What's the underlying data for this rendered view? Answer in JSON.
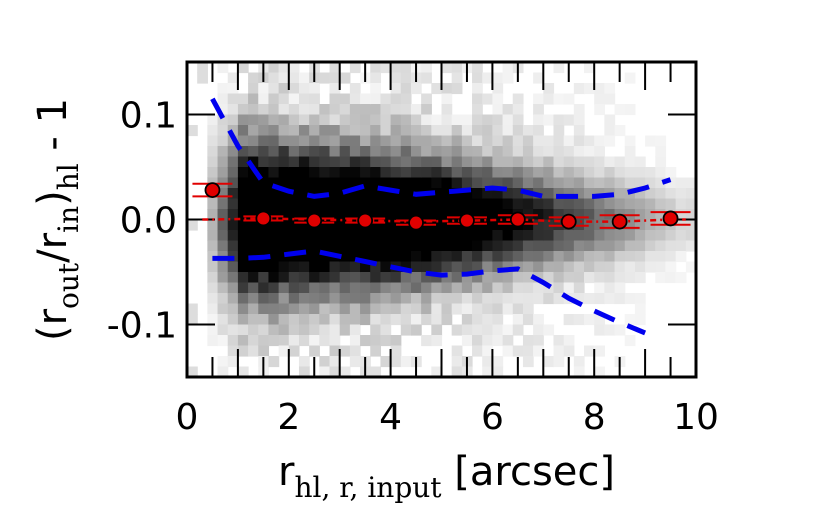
{
  "chart_data": {
    "type": "heatmap",
    "xlabel": {
      "main": "r",
      "subscript": "hl, r, input",
      "unit": " [arcsec]"
    },
    "ylabel": {
      "open": "(r",
      "sub_out": "out",
      "slash": "/r",
      "sub_in": "in",
      "close": ")",
      "sub_hl": "hl",
      "suffix": " - 1"
    },
    "xlim": [
      0,
      10
    ],
    "ylim": [
      -0.15,
      0.15
    ],
    "x_ticks": [
      0,
      2,
      4,
      6,
      8,
      10
    ],
    "x_tick_labels": [
      "0",
      "2",
      "4",
      "6",
      "8",
      "10"
    ],
    "y_ticks": [
      0.1,
      0.0,
      -0.1
    ],
    "y_tick_labels": [
      "0.1",
      "0.0",
      "-0.1"
    ],
    "grid": false,
    "heatmap": {
      "x_range": [
        0,
        10
      ],
      "y_range": [
        -0.15,
        0.15
      ],
      "nx": 50,
      "ny": 30,
      "colormap": "greys",
      "description_of_density": "dense core near x=1-5 around y=0, widening to the left"
    },
    "series": [
      {
        "type": "points_with_errorbars",
        "color": "#e00000",
        "x": [
          0.5,
          1.5,
          2.5,
          3.5,
          4.5,
          5.5,
          6.5,
          7.5,
          8.5,
          9.5
        ],
        "y": [
          0.028,
          0.001,
          -0.001,
          -0.001,
          -0.003,
          -0.001,
          0.0,
          -0.002,
          -0.002,
          0.001
        ],
        "yerr": [
          0.006,
          0.002,
          0.002,
          0.002,
          0.002,
          0.003,
          0.004,
          0.004,
          0.006,
          0.006
        ]
      },
      {
        "type": "median_line",
        "color": "#e00000",
        "x": [
          0.5,
          1.5,
          2.5,
          3.5,
          4.5,
          5.5,
          6.5,
          7.5,
          8.5,
          9.5
        ],
        "y": [
          0.0,
          0.001,
          0.0,
          -0.001,
          -0.002,
          -0.001,
          0.0,
          -0.002,
          -0.002,
          0.0
        ]
      },
      {
        "type": "dashed_envelope_upper",
        "color": "#0000ee",
        "x": [
          0.5,
          1.0,
          1.5,
          2.0,
          2.5,
          3.0,
          3.5,
          4.0,
          4.5,
          5.0,
          5.5,
          6.0,
          6.5,
          7.0,
          7.5,
          8.0,
          8.5,
          9.0,
          9.5
        ],
        "y": [
          0.115,
          0.07,
          0.035,
          0.027,
          0.022,
          0.025,
          0.032,
          0.028,
          0.024,
          0.026,
          0.028,
          0.03,
          0.028,
          0.022,
          0.022,
          0.022,
          0.024,
          0.03,
          0.038
        ]
      },
      {
        "type": "dashed_envelope_lower",
        "color": "#0000ee",
        "x": [
          0.5,
          1.0,
          1.5,
          2.0,
          2.5,
          3.0,
          3.5,
          4.0,
          4.5,
          5.0,
          5.5,
          6.0,
          6.5,
          7.0,
          7.5,
          8.0,
          8.5,
          9.0
        ],
        "y": [
          -0.037,
          -0.037,
          -0.036,
          -0.033,
          -0.03,
          -0.035,
          -0.04,
          -0.045,
          -0.05,
          -0.053,
          -0.052,
          -0.049,
          -0.047,
          -0.06,
          -0.075,
          -0.087,
          -0.098,
          -0.108
        ]
      }
    ]
  }
}
